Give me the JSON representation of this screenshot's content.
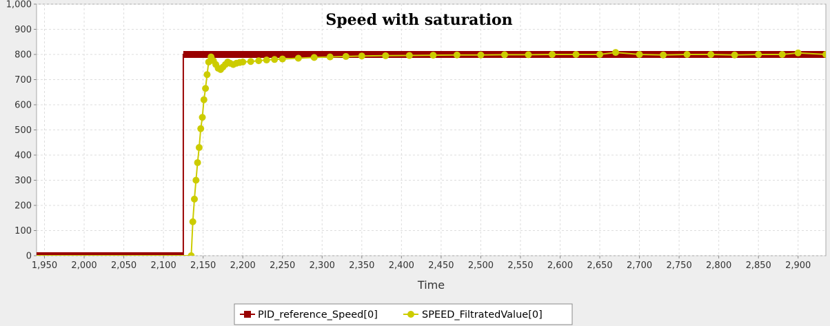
{
  "chart_data": {
    "type": "line",
    "title": "Speed with saturation",
    "xlabel": "Time",
    "ylabel": "",
    "xlim": [
      1940,
      2935
    ],
    "ylim": [
      0,
      1000
    ],
    "x_ticks": [
      1950,
      2000,
      2050,
      2100,
      2150,
      2200,
      2250,
      2300,
      2350,
      2400,
      2450,
      2500,
      2550,
      2600,
      2650,
      2700,
      2750,
      2800,
      2850,
      2900
    ],
    "x_tick_labels": [
      "1,950",
      "2,000",
      "2,050",
      "2,100",
      "2,150",
      "2,200",
      "2,250",
      "2,300",
      "2,350",
      "2,400",
      "2,450",
      "2,500",
      "2,550",
      "2,600",
      "2,650",
      "2,700",
      "2,750",
      "2,800",
      "2,850",
      "2,900"
    ],
    "y_ticks": [
      0,
      100,
      200,
      300,
      400,
      500,
      600,
      700,
      800,
      900,
      1000
    ],
    "y_tick_labels": [
      "0",
      "100",
      "200",
      "300",
      "400",
      "500",
      "600",
      "700",
      "800",
      "900",
      "1,000"
    ],
    "grid": true,
    "legend_position": "bottom",
    "series": [
      {
        "name": "PID_reference_Speed[0]",
        "color": "#990000",
        "marker": "square",
        "step": true,
        "x": [
          1940,
          2125,
          2125,
          2935
        ],
        "y": [
          0,
          0,
          800,
          800
        ]
      },
      {
        "name": "SPEED_FiltratedValue[0]",
        "color": "#cccc00",
        "marker": "circle",
        "x": [
          1940,
          2125,
          2135,
          2137,
          2139,
          2141,
          2143,
          2145,
          2147,
          2149,
          2151,
          2153,
          2155,
          2157,
          2160,
          2163,
          2166,
          2169,
          2172,
          2175,
          2178,
          2181,
          2184,
          2188,
          2192,
          2196,
          2200,
          2210,
          2220,
          2230,
          2240,
          2250,
          2270,
          2290,
          2310,
          2330,
          2350,
          2380,
          2410,
          2440,
          2470,
          2500,
          2530,
          2560,
          2590,
          2620,
          2650,
          2670,
          2700,
          2730,
          2760,
          2790,
          2820,
          2850,
          2880,
          2900,
          2935
        ],
        "y": [
          0,
          0,
          0,
          135,
          225,
          300,
          370,
          430,
          505,
          550,
          620,
          665,
          720,
          770,
          790,
          775,
          760,
          745,
          740,
          750,
          760,
          770,
          765,
          760,
          765,
          768,
          770,
          772,
          775,
          778,
          780,
          782,
          785,
          788,
          790,
          792,
          794,
          795,
          796,
          797,
          798,
          798,
          799,
          799,
          800,
          800,
          800,
          808,
          800,
          798,
          800,
          800,
          798,
          800,
          800,
          806,
          800
        ]
      }
    ]
  }
}
